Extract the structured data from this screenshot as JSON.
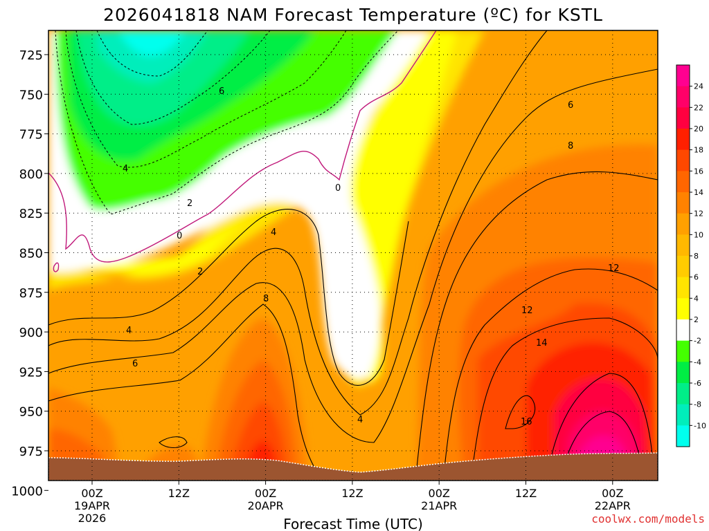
{
  "chart_data": {
    "type": "heatmap",
    "title": "2026041818 NAM Forecast Temperature (ºC) for KSTL",
    "xlabel": "Forecast Time (UTC)",
    "ylabel": "",
    "credit": "coolwx.com/models",
    "y_axis": {
      "quantity": "pressure (hPa)",
      "reversed": true,
      "ticks": [
        725,
        750,
        775,
        800,
        825,
        850,
        875,
        900,
        925,
        950,
        975,
        1000
      ]
    },
    "x_axis": {
      "ticks": [
        {
          "lines": [
            "00Z",
            "19APR",
            "2026"
          ]
        },
        {
          "lines": [
            "12Z"
          ]
        },
        {
          "lines": [
            "00Z",
            "20APR"
          ]
        },
        {
          "lines": [
            "12Z"
          ]
        },
        {
          "lines": [
            "00Z",
            "21APR"
          ]
        },
        {
          "lines": [
            "12Z"
          ]
        },
        {
          "lines": [
            "00Z",
            "22APR"
          ]
        }
      ],
      "grid": "dotted"
    },
    "colorbar": {
      "labels": [
        "24",
        "22",
        "20",
        "18",
        "16",
        "14",
        "12",
        "10",
        "8",
        "6",
        "4",
        "2",
        "-2",
        "-4",
        "-6",
        "-8",
        "-10"
      ],
      "colors": [
        "#ff0090",
        "#ff0068",
        "#ff0040",
        "#ff2000",
        "#ff4800",
        "#ff6600",
        "#ff8200",
        "#ffa000",
        "#ffb800",
        "#ffcc00",
        "#ffe400",
        "#ffff00",
        "#ffffff",
        "#44ff00",
        "#00ee44",
        "#00ee88",
        "#00eebb",
        "#00ffee"
      ]
    },
    "contour_labels": [
      "6",
      "4",
      "2",
      "0",
      "2",
      "4",
      "6",
      "8",
      "0",
      "4",
      "6",
      "8",
      "12",
      "12",
      "14",
      "16"
    ]
  }
}
